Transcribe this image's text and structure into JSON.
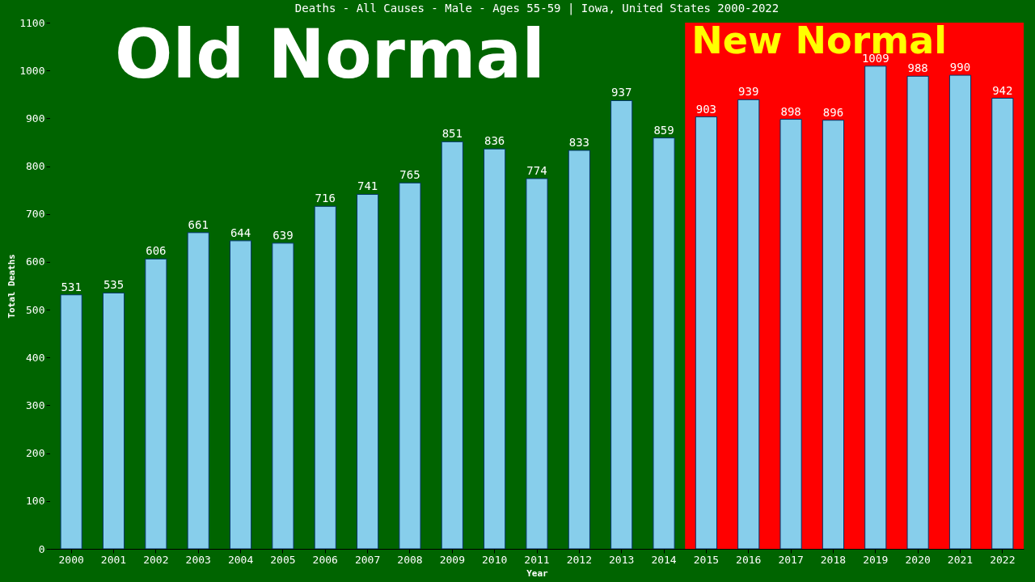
{
  "chart_data": {
    "type": "bar",
    "title": "Deaths - All Causes - Male - Ages 55-59 | Iowa, United States 2000-2022",
    "xlabel": "Year",
    "ylabel": "Total Deaths",
    "categories": [
      "2000",
      "2001",
      "2002",
      "2003",
      "2004",
      "2005",
      "2006",
      "2007",
      "2008",
      "2009",
      "2010",
      "2011",
      "2012",
      "2013",
      "2014",
      "2015",
      "2016",
      "2017",
      "2018",
      "2019",
      "2020",
      "2021",
      "2022"
    ],
    "values": [
      531,
      535,
      606,
      661,
      644,
      639,
      716,
      741,
      765,
      851,
      836,
      774,
      833,
      937,
      859,
      903,
      939,
      898,
      896,
      1009,
      988,
      990,
      942
    ],
    "color": "#87ceeb",
    "ylim": [
      0,
      1100
    ],
    "yticks": [
      0,
      100,
      200,
      300,
      400,
      500,
      600,
      700,
      800,
      900,
      1000,
      1100
    ],
    "grid": false,
    "data_labels": true,
    "bands": [
      {
        "axis": "x",
        "from": "2000",
        "to": "2014",
        "label": "Old Normal",
        "color": "#006400"
      },
      {
        "axis": "x",
        "from": "2015",
        "to": "2022",
        "label": "New Normal",
        "color": "#ff0000"
      }
    ]
  }
}
